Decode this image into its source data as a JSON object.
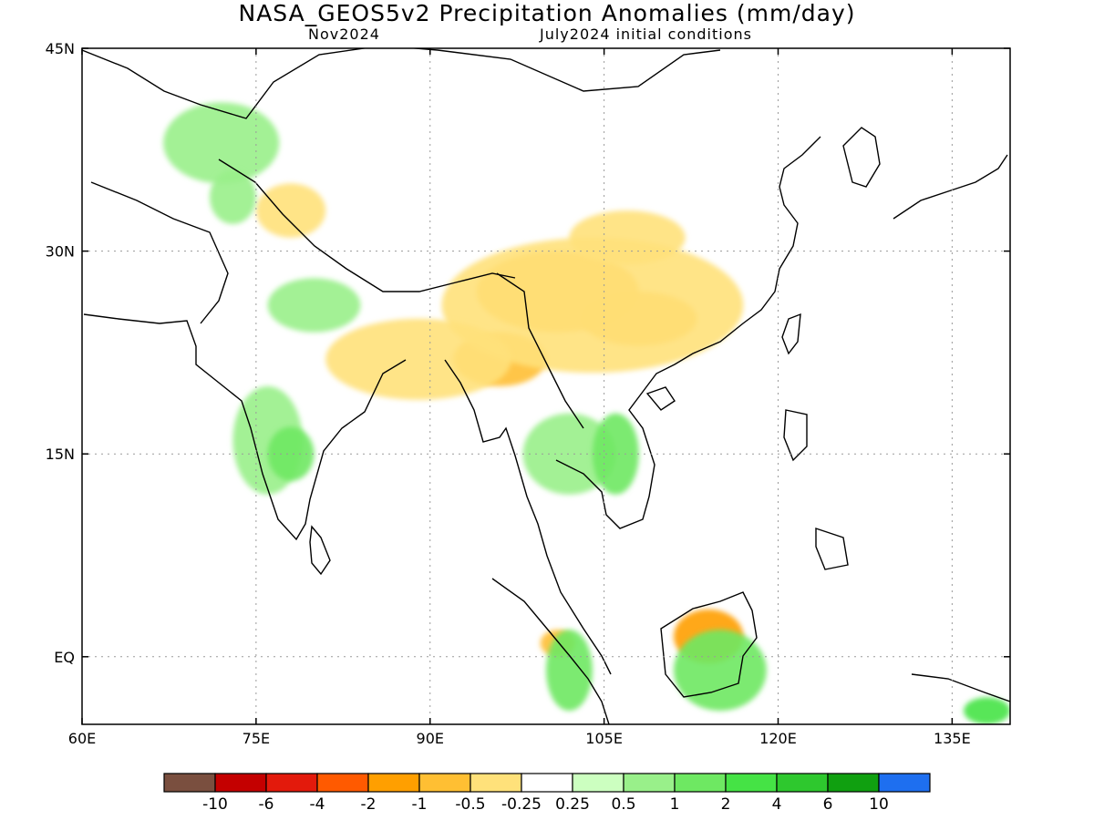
{
  "title": "NASA_GEOS5v2 Precipitation Anomalies (mm/day)",
  "subtitle_left": "Nov2024",
  "subtitle_right": "July2024 initial conditions",
  "map": {
    "lon_range": [
      60,
      140
    ],
    "lat_range": [
      -5,
      45
    ],
    "lon_ticks": [
      {
        "value": 60,
        "label": "60E"
      },
      {
        "value": 75,
        "label": "75E"
      },
      {
        "value": 90,
        "label": "90E"
      },
      {
        "value": 105,
        "label": "105E"
      },
      {
        "value": 120,
        "label": "120E"
      },
      {
        "value": 135,
        "label": "135E"
      }
    ],
    "lat_ticks": [
      {
        "value": 45,
        "label": "45N"
      },
      {
        "value": 30,
        "label": "30N"
      },
      {
        "value": 15,
        "label": "15N"
      },
      {
        "value": 0,
        "label": "EQ"
      }
    ],
    "grid": true
  },
  "colorbar": {
    "colors": [
      "#7a4f3f",
      "#c40000",
      "#e31a0c",
      "#ff5a00",
      "#ff9f00",
      "#ffbf33",
      "#ffe17a",
      "#ffffff",
      "#ccffc0",
      "#99f08a",
      "#6ee862",
      "#45e345",
      "#2ec82e",
      "#10a010",
      "#1e6ff0"
    ],
    "labels": [
      "-10",
      "-6",
      "-4",
      "-2",
      "-1",
      "-0.5",
      "-0.25",
      "0.25",
      "0.5",
      "1",
      "2",
      "4",
      "6",
      "10"
    ]
  },
  "anomaly_regions": [
    {
      "level": "-1",
      "color": "#ffbf33",
      "lon": 101,
      "lat": 27,
      "rx": 7,
      "ry": 3
    },
    {
      "level": "-1",
      "color": "#ffbf33",
      "lon": 108,
      "lat": 25,
      "rx": 5,
      "ry": 2
    },
    {
      "level": "-1",
      "color": "#ffbf33",
      "lon": 96,
      "lat": 22,
      "rx": 4,
      "ry": 2
    },
    {
      "level": "-0.5",
      "color": "#ffe17a",
      "lon": 104,
      "lat": 26,
      "rx": 13,
      "ry": 5
    },
    {
      "level": "-0.5",
      "color": "#ffe17a",
      "lon": 107,
      "lat": 31,
      "rx": 5,
      "ry": 2
    },
    {
      "level": "-0.5",
      "color": "#ffe17a",
      "lon": 89,
      "lat": 22,
      "rx": 8,
      "ry": 3
    },
    {
      "level": "-0.5",
      "color": "#ffe17a",
      "lon": 78,
      "lat": 33,
      "rx": 3,
      "ry": 2
    },
    {
      "level": "-2",
      "color": "#ff9f00",
      "lon": 114,
      "lat": 1.5,
      "rx": 3,
      "ry": 2
    },
    {
      "level": "-1",
      "color": "#ffbf33",
      "lon": 101,
      "lat": 1,
      "rx": 1.5,
      "ry": 1
    },
    {
      "level": "0.5",
      "color": "#99f08a",
      "lon": 76,
      "lat": 16,
      "rx": 3,
      "ry": 4
    },
    {
      "level": "1",
      "color": "#6ee862",
      "lon": 78,
      "lat": 15,
      "rx": 2,
      "ry": 2
    },
    {
      "level": "0.5",
      "color": "#99f08a",
      "lon": 102,
      "lat": 15,
      "rx": 4,
      "ry": 3
    },
    {
      "level": "1",
      "color": "#6ee862",
      "lon": 106,
      "lat": 15,
      "rx": 2,
      "ry": 3
    },
    {
      "level": "0.5",
      "color": "#99f08a",
      "lon": 72,
      "lat": 38,
      "rx": 5,
      "ry": 3
    },
    {
      "level": "0.5",
      "color": "#99f08a",
      "lon": 73,
      "lat": 34,
      "rx": 2,
      "ry": 2
    },
    {
      "level": "1",
      "color": "#6ee862",
      "lon": 115,
      "lat": -1,
      "rx": 4,
      "ry": 3
    },
    {
      "level": "1",
      "color": "#6ee862",
      "lon": 102,
      "lat": -1,
      "rx": 2,
      "ry": 3
    },
    {
      "level": "0.5",
      "color": "#99f08a",
      "lon": 80,
      "lat": 26,
      "rx": 4,
      "ry": 2
    },
    {
      "level": "2",
      "color": "#45e345",
      "lon": 138,
      "lat": -4,
      "rx": 2,
      "ry": 1
    }
  ]
}
